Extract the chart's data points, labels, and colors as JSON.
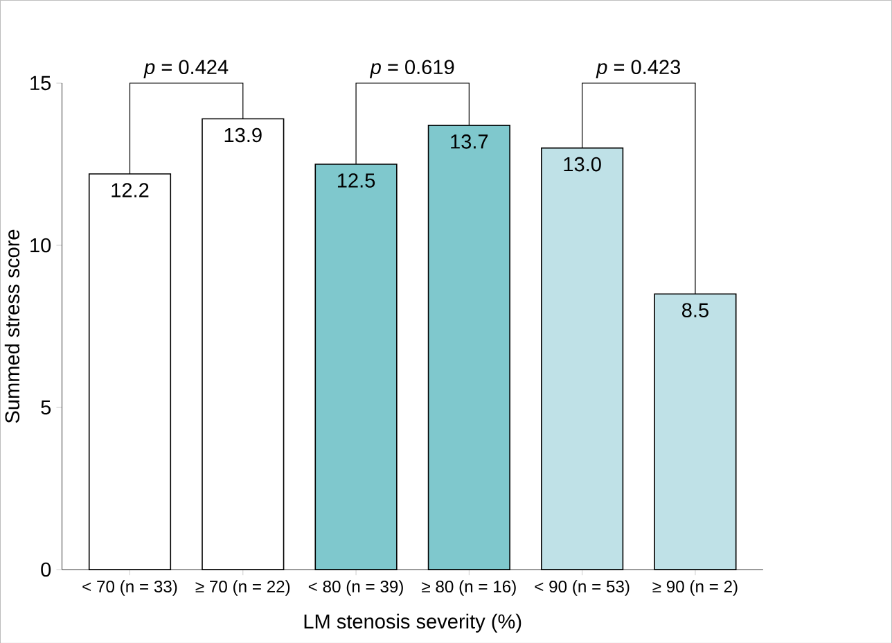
{
  "chart_data": {
    "type": "bar",
    "xlabel": "LM stenosis severity (%)",
    "ylabel": "Summed stress score",
    "categories": [
      "< 70 (n = 33)",
      "≥ 70 (n = 22)",
      "< 80 (n = 39)",
      "≥ 80 (n = 16)",
      "< 90 (n = 53)",
      "≥ 90 (n = 2)"
    ],
    "values": [
      12.2,
      13.9,
      12.5,
      13.7,
      13.0,
      8.5
    ],
    "colors": [
      "#ffffff",
      "#ffffff",
      "#7fc8cd",
      "#7fc8cd",
      "#bfe1e7",
      "#bfe1e7"
    ],
    "value_labels": [
      "12.2",
      "13.9",
      "12.5",
      "13.7",
      "13.0",
      "8.5"
    ],
    "ylim": [
      0,
      15
    ],
    "yticks": [
      0,
      5,
      10,
      15
    ],
    "annotations": [
      "*p* = 0.424",
      "*p* = 0.619",
      "*p* = 0.423"
    ]
  }
}
